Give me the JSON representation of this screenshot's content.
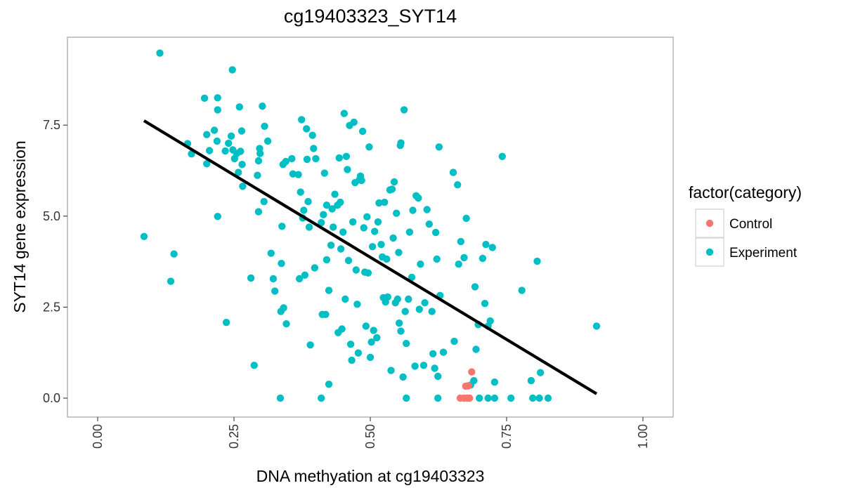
{
  "chart_data": {
    "type": "scatter",
    "title": "cg19403323_SYT14",
    "xlabel": "DNA methyation at cg19403323",
    "ylabel": "SYT14 gene expression",
    "xlim": [
      0,
      1
    ],
    "ylim": [
      -0.5,
      9.6
    ],
    "x_ticks": [
      "0.00",
      "0.25",
      "0.50",
      "0.75",
      "1.00"
    ],
    "y_ticks": [
      "0.0",
      "2.5",
      "5.0",
      "7.5"
    ],
    "grid": false,
    "legend": {
      "title": "factor(category)",
      "position": "right"
    },
    "colors": {
      "Control": "#F8766D",
      "Experiment": "#00BFC4",
      "fit_line": "#000000"
    },
    "series": [
      {
        "name": "Control",
        "points": [
          [
            0.665,
            0.0
          ],
          [
            0.672,
            0.0
          ],
          [
            0.678,
            0.0
          ],
          [
            0.682,
            0.0
          ],
          [
            0.675,
            0.33
          ],
          [
            0.68,
            0.34
          ],
          [
            0.686,
            0.72
          ]
        ]
      },
      {
        "name": "Experiment",
        "points": [
          [
            0.114,
            9.48
          ],
          [
            0.247,
            9.02
          ],
          [
            0.085,
            4.44
          ],
          [
            0.134,
            3.21
          ],
          [
            0.14,
            3.96
          ],
          [
            0.165,
            6.99
          ],
          [
            0.172,
            6.71
          ],
          [
            0.196,
            8.24
          ],
          [
            0.2,
            7.24
          ],
          [
            0.2,
            6.44
          ],
          [
            0.205,
            6.8
          ],
          [
            0.214,
            7.36
          ],
          [
            0.22,
            8.25
          ],
          [
            0.22,
            7.92
          ],
          [
            0.219,
            7.06
          ],
          [
            0.22,
            4.99
          ],
          [
            0.234,
            6.79
          ],
          [
            0.236,
            2.08
          ],
          [
            0.24,
            7.0
          ],
          [
            0.245,
            7.2
          ],
          [
            0.248,
            6.82
          ],
          [
            0.251,
            6.58
          ],
          [
            0.255,
            6.72
          ],
          [
            0.258,
            6.2
          ],
          [
            0.26,
            8.0
          ],
          [
            0.262,
            6.78
          ],
          [
            0.264,
            7.34
          ],
          [
            0.265,
            6.42
          ],
          [
            0.266,
            5.82
          ],
          [
            0.281,
            3.3
          ],
          [
            0.287,
            0.9
          ],
          [
            0.293,
            6.12
          ],
          [
            0.295,
            6.52
          ],
          [
            0.295,
            5.12
          ],
          [
            0.297,
            6.86
          ],
          [
            0.298,
            6.72
          ],
          [
            0.302,
            8.02
          ],
          [
            0.305,
            5.4
          ],
          [
            0.306,
            7.47
          ],
          [
            0.312,
            7.06
          ],
          [
            0.318,
            3.98
          ],
          [
            0.322,
            3.28
          ],
          [
            0.325,
            2.94
          ],
          [
            0.335,
            0.0
          ],
          [
            0.336,
            2.38
          ],
          [
            0.337,
            3.7
          ],
          [
            0.338,
            4.72
          ],
          [
            0.34,
            6.42
          ],
          [
            0.341,
            2.48
          ],
          [
            0.345,
            6.5
          ],
          [
            0.346,
            2.04
          ],
          [
            0.356,
            6.58
          ],
          [
            0.358,
            6.16
          ],
          [
            0.368,
            6.14
          ],
          [
            0.37,
            3.28
          ],
          [
            0.372,
            5.66
          ],
          [
            0.374,
            7.65
          ],
          [
            0.376,
            4.95
          ],
          [
            0.378,
            5.16
          ],
          [
            0.38,
            3.38
          ],
          [
            0.383,
            7.4
          ],
          [
            0.384,
            6.56
          ],
          [
            0.386,
            5.4
          ],
          [
            0.388,
            4.7
          ],
          [
            0.39,
            1.46
          ],
          [
            0.394,
            7.22
          ],
          [
            0.396,
            6.86
          ],
          [
            0.398,
            3.58
          ],
          [
            0.4,
            6.58
          ],
          [
            0.41,
            4.82
          ],
          [
            0.41,
            0.0
          ],
          [
            0.412,
            2.3
          ],
          [
            0.414,
            5.04
          ],
          [
            0.416,
            6.18
          ],
          [
            0.418,
            2.3
          ],
          [
            0.42,
            3.8
          ],
          [
            0.42,
            5.3
          ],
          [
            0.424,
            2.96
          ],
          [
            0.424,
            0.38
          ],
          [
            0.428,
            4.2
          ],
          [
            0.43,
            5.2
          ],
          [
            0.432,
            4.7
          ],
          [
            0.435,
            5.6
          ],
          [
            0.44,
            5.3
          ],
          [
            0.441,
            1.8
          ],
          [
            0.443,
            6.6
          ],
          [
            0.445,
            5.38
          ],
          [
            0.446,
            4.1
          ],
          [
            0.448,
            1.9
          ],
          [
            0.45,
            4.56
          ],
          [
            0.452,
            7.82
          ],
          [
            0.454,
            2.72
          ],
          [
            0.456,
            6.64
          ],
          [
            0.458,
            6.28
          ],
          [
            0.46,
            3.78
          ],
          [
            0.462,
            7.49
          ],
          [
            0.464,
            1.48
          ],
          [
            0.466,
            1.04
          ],
          [
            0.468,
            4.84
          ],
          [
            0.47,
            7.58
          ],
          [
            0.472,
            5.92
          ],
          [
            0.474,
            3.52
          ],
          [
            0.476,
            2.58
          ],
          [
            0.478,
            1.24
          ],
          [
            0.48,
            6.0
          ],
          [
            0.482,
            6.1
          ],
          [
            0.484,
            5.98
          ],
          [
            0.486,
            7.33
          ],
          [
            0.488,
            4.68
          ],
          [
            0.49,
            3.46
          ],
          [
            0.492,
            1.98
          ],
          [
            0.494,
            4.98
          ],
          [
            0.496,
            3.44
          ],
          [
            0.498,
            6.9
          ],
          [
            0.5,
            1.12
          ],
          [
            0.502,
            1.54
          ],
          [
            0.504,
            4.16
          ],
          [
            0.506,
            1.86
          ],
          [
            0.508,
            4.58
          ],
          [
            0.512,
            1.66
          ],
          [
            0.514,
            4.84
          ],
          [
            0.516,
            5.36
          ],
          [
            0.52,
            4.22
          ],
          [
            0.522,
            3.88
          ],
          [
            0.524,
            2.76
          ],
          [
            0.526,
            5.38
          ],
          [
            0.528,
            2.64
          ],
          [
            0.53,
            3.82
          ],
          [
            0.532,
            2.78
          ],
          [
            0.536,
            5.72
          ],
          [
            0.538,
            0.76
          ],
          [
            0.54,
            5.74
          ],
          [
            0.542,
            4.4
          ],
          [
            0.544,
            5.94
          ],
          [
            0.546,
            2.62
          ],
          [
            0.548,
            5.08
          ],
          [
            0.55,
            2.72
          ],
          [
            0.552,
            4.0
          ],
          [
            0.553,
            2.06
          ],
          [
            0.555,
            6.94
          ],
          [
            0.556,
            7.01
          ],
          [
            0.556,
            1.84
          ],
          [
            0.56,
            0.58
          ],
          [
            0.562,
            7.92
          ],
          [
            0.564,
            2.38
          ],
          [
            0.566,
            1.5
          ],
          [
            0.566,
            0.0
          ],
          [
            0.57,
            2.72
          ],
          [
            0.572,
            4.56
          ],
          [
            0.576,
            3.32
          ],
          [
            0.578,
            5.16
          ],
          [
            0.582,
            0.88
          ],
          [
            0.584,
            5.56
          ],
          [
            0.588,
            5.5
          ],
          [
            0.59,
            2.44
          ],
          [
            0.592,
            3.68
          ],
          [
            0.598,
            0.9
          ],
          [
            0.6,
            2.62
          ],
          [
            0.604,
            5.18
          ],
          [
            0.608,
            4.78
          ],
          [
            0.613,
            2.38
          ],
          [
            0.615,
            1.22
          ],
          [
            0.618,
            0.82
          ],
          [
            0.62,
            4.55
          ],
          [
            0.622,
            3.82
          ],
          [
            0.624,
            0.0
          ],
          [
            0.624,
            0.6
          ],
          [
            0.626,
            6.9
          ],
          [
            0.628,
            2.82
          ],
          [
            0.634,
            1.26
          ],
          [
            0.652,
            6.2
          ],
          [
            0.654,
            1.56
          ],
          [
            0.66,
            5.86
          ],
          [
            0.662,
            3.68
          ],
          [
            0.666,
            4.3
          ],
          [
            0.672,
            3.86
          ],
          [
            0.676,
            4.94
          ],
          [
            0.684,
            0.36
          ],
          [
            0.69,
            0.48
          ],
          [
            0.692,
            3.06
          ],
          [
            0.694,
            1.34
          ],
          [
            0.698,
            2.02
          ],
          [
            0.706,
            3.84
          ],
          [
            0.71,
            2.6
          ],
          [
            0.712,
            4.22
          ],
          [
            0.716,
            1.98
          ],
          [
            0.72,
            2.12
          ],
          [
            0.724,
            4.14
          ],
          [
            0.728,
            0.44
          ],
          [
            0.7,
            0.0
          ],
          [
            0.716,
            0.0
          ],
          [
            0.728,
            0.0
          ],
          [
            0.742,
            6.64
          ],
          [
            0.758,
            0.0
          ],
          [
            0.778,
            2.96
          ],
          [
            0.795,
            0.48
          ],
          [
            0.798,
            0.0
          ],
          [
            0.806,
            3.76
          ],
          [
            0.81,
            0.0
          ],
          [
            0.812,
            0.7
          ],
          [
            0.826,
            0.0
          ],
          [
            0.915,
            1.98
          ]
        ]
      }
    ],
    "fit_line": {
      "x": [
        0.085,
        0.915
      ],
      "y": [
        7.62,
        0.12
      ]
    }
  }
}
